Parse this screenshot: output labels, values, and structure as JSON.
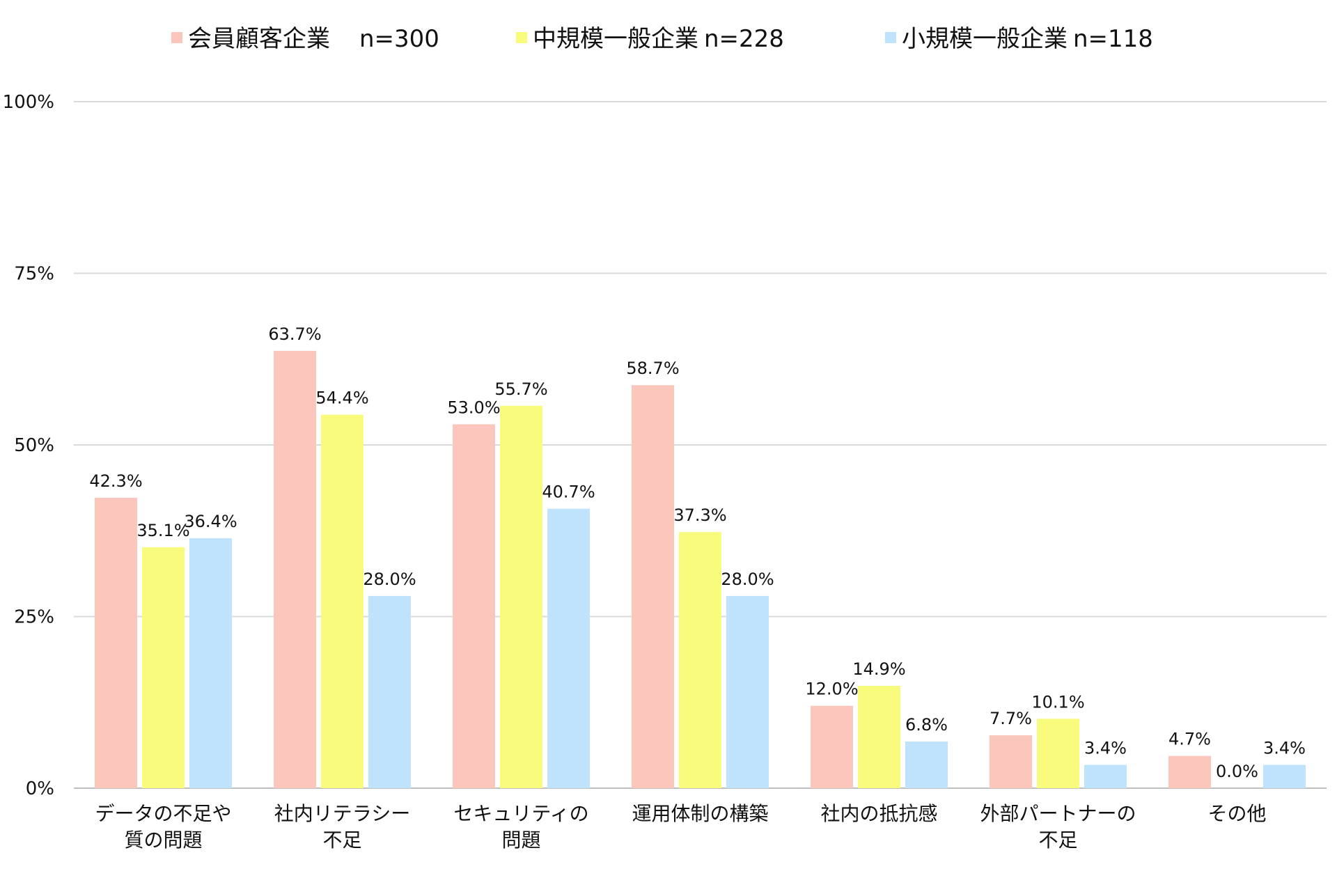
{
  "chart_data": {
    "type": "bar",
    "title": "",
    "xlabel": "",
    "ylabel": "",
    "ylim": [
      0,
      100
    ],
    "yticks": [
      {
        "value": 0,
        "label": "0%"
      },
      {
        "value": 25,
        "label": "25%"
      },
      {
        "value": 50,
        "label": "50%"
      },
      {
        "value": 75,
        "label": "75%"
      },
      {
        "value": 100,
        "label": "100%"
      }
    ],
    "grid": true,
    "legend_position": "top",
    "categories": [
      [
        "データの不足や",
        "質の問題"
      ],
      [
        "社内リテラシー",
        "不足"
      ],
      [
        "セキュリティの",
        "問題"
      ],
      [
        "運用体制の構築"
      ],
      [
        "社内の抵抗感"
      ],
      [
        "外部パートナーの",
        "不足"
      ],
      [
        "その他"
      ]
    ],
    "series": [
      {
        "name": "会員顧客企業",
        "n_label": "n=300",
        "color": "#FBC7BC",
        "values": [
          42.3,
          63.7,
          53.0,
          58.7,
          12.0,
          7.7,
          4.7
        ],
        "labels": [
          "42.3%",
          "63.7%",
          "53.0%",
          "58.7%",
          "12.0%",
          "7.7%",
          "4.7%"
        ]
      },
      {
        "name": "中規模一般企業",
        "n_label": "n=228",
        "color": "#F8FB7C",
        "values": [
          35.1,
          54.4,
          55.7,
          37.3,
          14.9,
          10.1,
          0.0
        ],
        "labels": [
          "35.1%",
          "54.4%",
          "55.7%",
          "37.3%",
          "14.9%",
          "10.1%",
          "0.0%"
        ]
      },
      {
        "name": "小規模一般企業",
        "n_label": "n=118",
        "color": "#BFE3FC",
        "values": [
          36.4,
          28.0,
          40.7,
          28.0,
          6.8,
          3.4,
          3.4
        ],
        "labels": [
          "36.4%",
          "28.0%",
          "40.7%",
          "28.0%",
          "6.8%",
          "3.4%",
          "3.4%"
        ]
      }
    ]
  }
}
